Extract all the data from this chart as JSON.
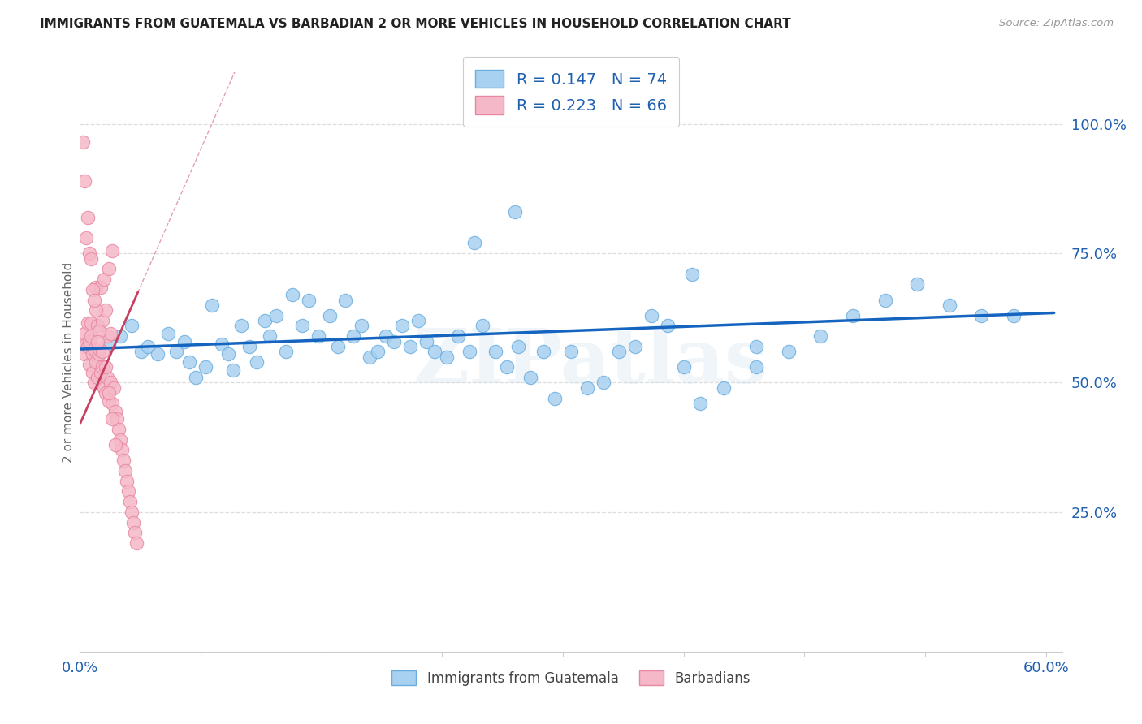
{
  "title": "IMMIGRANTS FROM GUATEMALA VS BARBADIAN 2 OR MORE VEHICLES IN HOUSEHOLD CORRELATION CHART",
  "source": "Source: ZipAtlas.com",
  "ylabel": "2 or more Vehicles in Household",
  "ytick_labels": [
    "100.0%",
    "75.0%",
    "50.0%",
    "25.0%"
  ],
  "ytick_values": [
    1.0,
    0.75,
    0.5,
    0.25
  ],
  "xlim": [
    0.0,
    0.61
  ],
  "ylim": [
    -0.02,
    1.1
  ],
  "blue_R": 0.147,
  "blue_N": 74,
  "pink_R": 0.223,
  "pink_N": 66,
  "legend1_label": "Immigrants from Guatemala",
  "legend2_label": "Barbadians",
  "watermark": "ZIPatlas",
  "blue_color": "#A8D0F0",
  "blue_edge": "#6AAEE0",
  "pink_color": "#F5B8C8",
  "pink_edge": "#E888A0",
  "trend_blue": "#1565C0",
  "trend_pink": "#C84060",
  "label_color": "#2060B0",
  "background_color": "#ffffff",
  "grid_color": "#dddddd",
  "blue_x": [
    0.018,
    0.025,
    0.032,
    0.038,
    0.042,
    0.048,
    0.055,
    0.06,
    0.065,
    0.068,
    0.072,
    0.078,
    0.082,
    0.088,
    0.092,
    0.095,
    0.1,
    0.105,
    0.11,
    0.115,
    0.118,
    0.122,
    0.128,
    0.132,
    0.138,
    0.142,
    0.148,
    0.155,
    0.16,
    0.165,
    0.17,
    0.175,
    0.18,
    0.185,
    0.19,
    0.195,
    0.2,
    0.205,
    0.21,
    0.215,
    0.22,
    0.228,
    0.235,
    0.242,
    0.25,
    0.258,
    0.265,
    0.272,
    0.28,
    0.288,
    0.295,
    0.305,
    0.315,
    0.325,
    0.335,
    0.345,
    0.355,
    0.365,
    0.375,
    0.385,
    0.4,
    0.42,
    0.44,
    0.46,
    0.48,
    0.5,
    0.52,
    0.54,
    0.56,
    0.58,
    0.245,
    0.27,
    0.38,
    0.42
  ],
  "blue_y": [
    0.575,
    0.59,
    0.61,
    0.56,
    0.57,
    0.555,
    0.595,
    0.56,
    0.58,
    0.54,
    0.51,
    0.53,
    0.65,
    0.575,
    0.555,
    0.525,
    0.61,
    0.57,
    0.54,
    0.62,
    0.59,
    0.63,
    0.56,
    0.67,
    0.61,
    0.66,
    0.59,
    0.63,
    0.57,
    0.66,
    0.59,
    0.61,
    0.55,
    0.56,
    0.59,
    0.58,
    0.61,
    0.57,
    0.62,
    0.58,
    0.56,
    0.55,
    0.59,
    0.56,
    0.61,
    0.56,
    0.53,
    0.57,
    0.51,
    0.56,
    0.47,
    0.56,
    0.49,
    0.5,
    0.56,
    0.57,
    0.63,
    0.61,
    0.53,
    0.46,
    0.49,
    0.53,
    0.56,
    0.59,
    0.63,
    0.66,
    0.69,
    0.65,
    0.63,
    0.63,
    0.77,
    0.83,
    0.71,
    0.57
  ],
  "pink_x": [
    0.003,
    0.003,
    0.004,
    0.005,
    0.005,
    0.006,
    0.006,
    0.007,
    0.007,
    0.008,
    0.008,
    0.009,
    0.009,
    0.01,
    0.01,
    0.011,
    0.011,
    0.012,
    0.012,
    0.013,
    0.013,
    0.014,
    0.014,
    0.015,
    0.015,
    0.016,
    0.016,
    0.017,
    0.017,
    0.018,
    0.018,
    0.019,
    0.019,
    0.02,
    0.02,
    0.021,
    0.022,
    0.023,
    0.024,
    0.025,
    0.026,
    0.027,
    0.028,
    0.029,
    0.03,
    0.031,
    0.032,
    0.033,
    0.034,
    0.035,
    0.004,
    0.006,
    0.008,
    0.01,
    0.012,
    0.014,
    0.016,
    0.018,
    0.02,
    0.022,
    0.002,
    0.003,
    0.005,
    0.007,
    0.009,
    0.011
  ],
  "pink_y": [
    0.595,
    0.555,
    0.575,
    0.615,
    0.57,
    0.535,
    0.58,
    0.615,
    0.59,
    0.555,
    0.52,
    0.565,
    0.5,
    0.54,
    0.685,
    0.51,
    0.61,
    0.555,
    0.565,
    0.52,
    0.685,
    0.53,
    0.62,
    0.49,
    0.7,
    0.48,
    0.64,
    0.51,
    0.59,
    0.465,
    0.72,
    0.5,
    0.595,
    0.46,
    0.755,
    0.49,
    0.445,
    0.43,
    0.41,
    0.39,
    0.37,
    0.35,
    0.33,
    0.31,
    0.29,
    0.27,
    0.25,
    0.23,
    0.21,
    0.19,
    0.78,
    0.75,
    0.68,
    0.64,
    0.6,
    0.56,
    0.53,
    0.48,
    0.43,
    0.38,
    0.965,
    0.89,
    0.82,
    0.74,
    0.66,
    0.58
  ]
}
